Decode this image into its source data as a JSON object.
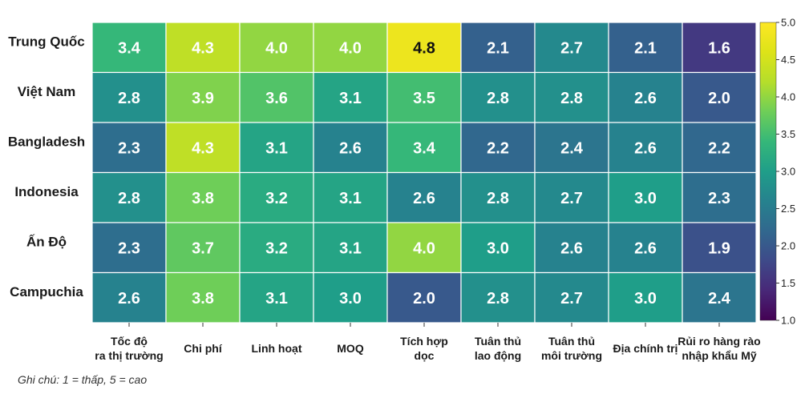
{
  "chart_data": {
    "type": "heatmap",
    "rows": [
      "Trung Quốc",
      "Việt Nam",
      "Bangladesh",
      "Indonesia",
      "Ấn Độ",
      "Campuchia"
    ],
    "columns": [
      [
        "Tốc độ",
        "ra thị trường"
      ],
      [
        "Chi phí"
      ],
      [
        "Linh hoạt"
      ],
      [
        "MOQ"
      ],
      [
        "Tích hợp",
        "dọc"
      ],
      [
        "Tuân thủ",
        "lao động"
      ],
      [
        "Tuân thủ",
        "môi trường"
      ],
      [
        "Địa chính trị"
      ],
      [
        "Rủi ro hàng rào",
        "nhập khẩu Mỹ"
      ]
    ],
    "values": [
      [
        3.4,
        4.3,
        4.0,
        4.0,
        4.8,
        2.1,
        2.7,
        2.1,
        1.6
      ],
      [
        2.8,
        3.9,
        3.6,
        3.1,
        3.5,
        2.8,
        2.8,
        2.6,
        2.0
      ],
      [
        2.3,
        4.3,
        3.1,
        2.6,
        3.4,
        2.2,
        2.4,
        2.6,
        2.2
      ],
      [
        2.8,
        3.8,
        3.2,
        3.1,
        2.6,
        2.8,
        2.7,
        3.0,
        2.3
      ],
      [
        2.3,
        3.7,
        3.2,
        3.1,
        4.0,
        3.0,
        2.6,
        2.6,
        1.9
      ],
      [
        2.6,
        3.8,
        3.1,
        3.0,
        2.0,
        2.8,
        2.7,
        3.0,
        2.4
      ]
    ],
    "colorbar": {
      "range": [
        1.0,
        5.0
      ],
      "ticks": [
        "1.0",
        "1.5",
        "2.0",
        "2.5",
        "3.0",
        "3.5",
        "4.0",
        "4.5",
        "5.0"
      ],
      "colormap": "viridis"
    },
    "note": "Ghi chú: 1 = thấp, 5 = cao"
  }
}
